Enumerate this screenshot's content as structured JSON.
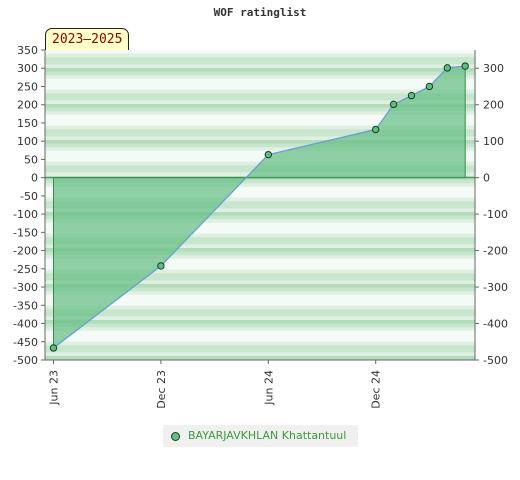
{
  "chart_data": {
    "type": "area",
    "title": "WOF ratinglist",
    "period": "2023–2025",
    "xlabel": "",
    "ylabel": "",
    "x_ticks": [
      "Jun 23",
      "Dec 23",
      "Jun 24",
      "Dec 24"
    ],
    "left_ticks": [
      350,
      300,
      250,
      200,
      150,
      100,
      50,
      0,
      -50,
      -100,
      -150,
      -200,
      -250,
      -300,
      -350,
      -400,
      -450,
      -500
    ],
    "right_ticks": [
      300,
      200,
      100,
      0,
      -100,
      -200,
      -300,
      -400,
      -500
    ],
    "ylim": [
      -500,
      350
    ],
    "series": [
      {
        "name": "BAYARJAVKHLAN Khattantuul",
        "points": [
          {
            "x": "2023-06",
            "y": -467
          },
          {
            "x": "2023-12",
            "y": -242
          },
          {
            "x": "2024-06",
            "y": 63
          },
          {
            "x": "2024-12",
            "y": 132
          },
          {
            "x": "2025-01",
            "y": 201
          },
          {
            "x": "2025-02",
            "y": 225
          },
          {
            "x": "2025-03",
            "y": 250
          },
          {
            "x": "2025-04",
            "y": 301
          },
          {
            "x": "2025-05",
            "y": 306
          }
        ]
      }
    ],
    "legend_position": "bottom",
    "colors": {
      "fill": "#6cc08a",
      "line": "#6a9fd8",
      "marker": "#5fbf7f",
      "marker_stroke": "#1a3a22"
    }
  }
}
